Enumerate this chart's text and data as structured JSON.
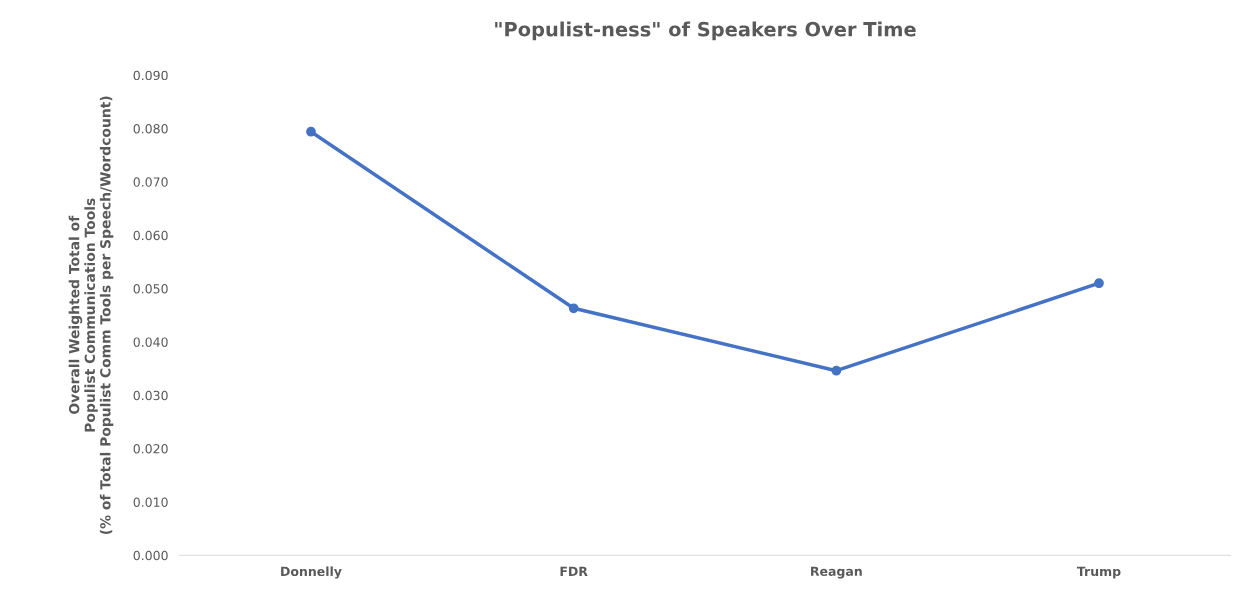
{
  "chart_data": {
    "type": "line",
    "title": "\"Populist-ness\" of Speakers Over Time",
    "ylabel": "Overall Weighted Total of\nPopulist Communication Tools\n(% of Total Populist Comm Tools per Speech/Wordcount)",
    "categories": [
      "Donnelly",
      "FDR",
      "Reagan",
      "Trump"
    ],
    "series": [
      {
        "color": "#4472c4",
        "values": [
          0.0794,
          0.0463,
          0.0346,
          0.051
        ]
      }
    ],
    "ylim": [
      0,
      0.09
    ],
    "yticks": [
      {
        "value": 0,
        "label": "0.000"
      },
      {
        "value": 0.01,
        "label": "0.010"
      },
      {
        "value": 0.02,
        "label": "0.020"
      },
      {
        "value": 0.03,
        "label": "0.030"
      },
      {
        "value": 0.04,
        "label": "0.040"
      },
      {
        "value": 0.05,
        "label": "0.050"
      },
      {
        "value": 0.06,
        "label": "0.060"
      },
      {
        "value": 0.07,
        "label": "0.070"
      },
      {
        "value": 0.08,
        "label": "0.080"
      },
      {
        "value": 0.09,
        "label": "0.090"
      }
    ],
    "grid": false,
    "marker": "circle",
    "line_style": "solid"
  }
}
